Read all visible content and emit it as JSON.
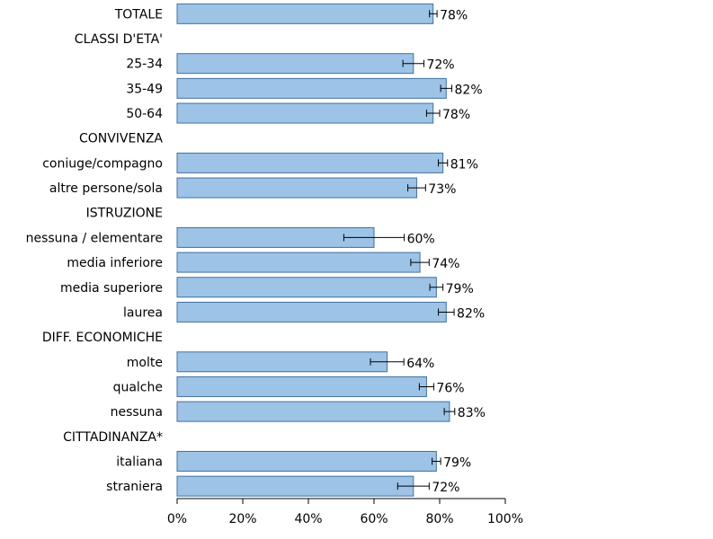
{
  "chart_data": {
    "type": "bar",
    "orientation": "horizontal",
    "title": "",
    "xlabel": "",
    "ylabel": "",
    "xlim": [
      0,
      100
    ],
    "x_ticks": [
      "0%",
      "20%",
      "40%",
      "60%",
      "80%",
      "100%"
    ],
    "grid": false,
    "bar_color": "#9dc3e6",
    "bar_edge_color": "#41719c",
    "rows": [
      {
        "label": "TOTALE",
        "value": 78,
        "value_label": "78%",
        "err_low": 76.9,
        "err_high": 79.2
      },
      {
        "label": "CLASSI D'ETA'",
        "header": true
      },
      {
        "label": "25-34",
        "value": 72,
        "value_label": "72%",
        "err_low": 68.8,
        "err_high": 75.2
      },
      {
        "label": "35-49",
        "value": 82,
        "value_label": "82%",
        "err_low": 80.3,
        "err_high": 83.7
      },
      {
        "label": "50-64",
        "value": 78,
        "value_label": "78%",
        "err_low": 76.0,
        "err_high": 80.0
      },
      {
        "label": "CONVIVENZA",
        "header": true
      },
      {
        "label": "coniuge/compagno",
        "value": 81,
        "value_label": "81%",
        "err_low": 79.6,
        "err_high": 82.4
      },
      {
        "label": "altre persone/sola",
        "value": 73,
        "value_label": "73%",
        "err_low": 70.3,
        "err_high": 75.7
      },
      {
        "label": "ISTRUZIONE",
        "header": true
      },
      {
        "label": "nessuna / elementare",
        "value": 60,
        "value_label": "60%",
        "err_low": 50.8,
        "err_high": 69.2
      },
      {
        "label": "media inferiore",
        "value": 74,
        "value_label": "74%",
        "err_low": 71.2,
        "err_high": 76.8
      },
      {
        "label": "media superiore",
        "value": 79,
        "value_label": "79%",
        "err_low": 77.0,
        "err_high": 81.0
      },
      {
        "label": "laurea",
        "value": 82,
        "value_label": "82%",
        "err_low": 79.6,
        "err_high": 84.4
      },
      {
        "label": "DIFF. ECONOMICHE",
        "header": true
      },
      {
        "label": "molte",
        "value": 64,
        "value_label": "64%",
        "err_low": 58.9,
        "err_high": 69.1
      },
      {
        "label": "qualche",
        "value": 76,
        "value_label": "76%",
        "err_low": 73.8,
        "err_high": 78.2
      },
      {
        "label": "nessuna",
        "value": 83,
        "value_label": "83%",
        "err_low": 81.4,
        "err_high": 84.6
      },
      {
        "label": "CITTADINANZA*",
        "header": true
      },
      {
        "label": "italiana",
        "value": 79,
        "value_label": "79%",
        "err_low": 77.7,
        "err_high": 80.3
      },
      {
        "label": "straniera",
        "value": 72,
        "value_label": "72%",
        "err_low": 67.2,
        "err_high": 76.8
      }
    ]
  }
}
